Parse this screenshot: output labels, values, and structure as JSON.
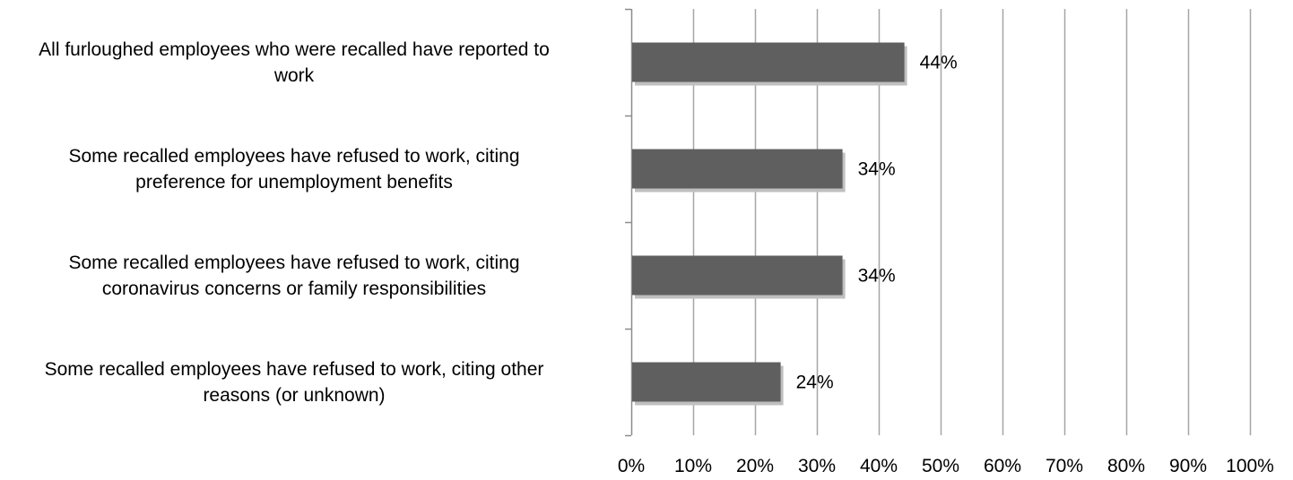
{
  "chart_data": {
    "type": "bar",
    "orientation": "horizontal",
    "categories": [
      "All furloughed employees who were recalled have reported to work",
      "Some recalled employees have refused to work, citing preference for unemployment benefits",
      "Some recalled employees have refused to work, citing coronavirus concerns or family responsibilities",
      "Some recalled employees have refused to work, citing other reasons (or unknown)"
    ],
    "category_lines": [
      [
        "All furloughed employees who were recalled have reported to",
        "work"
      ],
      [
        "Some recalled employees have refused to work, citing",
        "preference for unemployment benefits"
      ],
      [
        "Some recalled employees have refused to work, citing",
        "coronavirus concerns or family responsibilities"
      ],
      [
        "Some recalled employees have refused to work, citing other",
        "reasons (or unknown)"
      ]
    ],
    "values": [
      44,
      34,
      34,
      24
    ],
    "data_labels": [
      "44%",
      "34%",
      "34%",
      "24%"
    ],
    "x_ticks": [
      "0%",
      "10%",
      "20%",
      "30%",
      "40%",
      "50%",
      "60%",
      "70%",
      "80%",
      "90%",
      "100%"
    ],
    "xlim": [
      0,
      100
    ],
    "grid": "vertical",
    "legend": "none",
    "title": "",
    "xlabel": "",
    "ylabel": "",
    "colors": {
      "bar": "#5f5f5f",
      "bar_shadow": "#bfbfbf",
      "grid": "#a6a6a6",
      "axis": "#8c8c8c",
      "text": "#000000"
    }
  }
}
